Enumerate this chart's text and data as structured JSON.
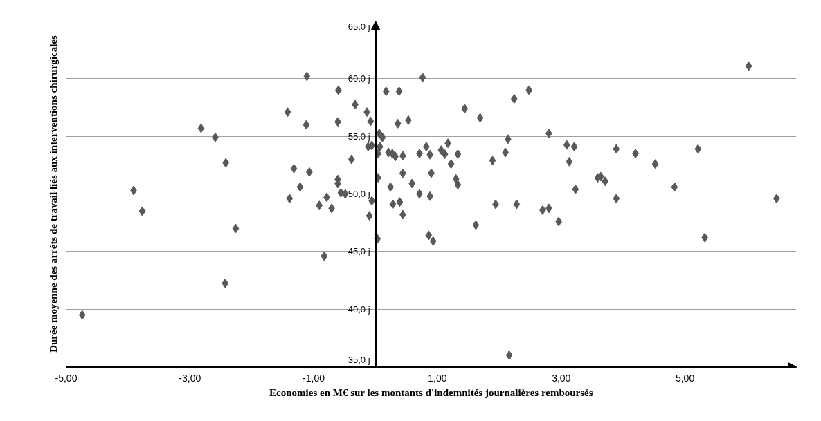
{
  "chart_data": {
    "type": "scatter",
    "xlabel": "Economies en M€ sur les montants d'indemnités journalières remboursés",
    "ylabel": "Durée moyenne des arrêts de travail liés aux interventions chirurgicales",
    "xlim": [
      -5,
      6.8
    ],
    "ylim": [
      35,
      65
    ],
    "xticks": [
      {
        "value": -5,
        "label": "-5,00"
      },
      {
        "value": -3,
        "label": "-3,00"
      },
      {
        "value": -1,
        "label": "-1,00"
      },
      {
        "value": 1,
        "label": "1,00"
      },
      {
        "value": 3,
        "label": "3,00"
      },
      {
        "value": 5,
        "label": "5,00"
      }
    ],
    "yticks": [
      {
        "value": 35,
        "label": "35,0 j"
      },
      {
        "value": 40,
        "label": "40,0 j"
      },
      {
        "value": 45,
        "label": "45,0 j"
      },
      {
        "value": 50,
        "label": "50,0 j"
      },
      {
        "value": 55,
        "label": "55,0 j"
      },
      {
        "value": 60,
        "label": "60,0 j"
      },
      {
        "value": 65,
        "label": "65,0 j"
      }
    ],
    "grid": "y",
    "marker": "diamond",
    "series": [
      {
        "color": "#595959",
        "x": [
          -4.74,
          -3.91,
          -3.77,
          -2.82,
          -2.59,
          -2.42,
          -2.26,
          -2.43,
          -1.11,
          -1.42,
          -1.12,
          -0.6,
          -0.61,
          -0.33,
          -0.14,
          -0.08,
          0.17,
          0.38,
          0.36,
          0.53,
          0.76,
          0.06,
          0.11,
          -0.12,
          -0.06,
          0.07,
          0.04,
          0.21,
          0.27,
          0.32,
          0.44,
          -0.39,
          -1.32,
          -1.07,
          -1.22,
          -1.39,
          -0.61,
          -0.61,
          -0.56,
          -0.49,
          -0.79,
          -0.91,
          -0.71,
          -0.83,
          0.04,
          0.24,
          -0.06,
          -0.1,
          0.03,
          0.28,
          0.39,
          0.44,
          0.44,
          0.59,
          0.71,
          0.71,
          0.82,
          0.88,
          0.9,
          0.88,
          0.86,
          0.93,
          1.06,
          1.17,
          1.12,
          1.33,
          1.22,
          1.3,
          1.33,
          1.44,
          1.69,
          1.89,
          1.62,
          1.94,
          2.14,
          2.1,
          2.24,
          2.48,
          2.28,
          2.16,
          2.7,
          2.8,
          2.96,
          2.8,
          3.09,
          3.21,
          3.13,
          3.23,
          3.59,
          3.64,
          3.71,
          3.89,
          3.89,
          4.2,
          4.52,
          4.83,
          5.21,
          5.32,
          6.03,
          6.48
        ],
        "values": [
          39.5,
          50.3,
          48.5,
          55.7,
          54.9,
          52.7,
          47.0,
          42.25,
          60.2,
          57.1,
          56.0,
          59.0,
          56.25,
          57.75,
          57.1,
          56.3,
          58.9,
          58.9,
          56.1,
          56.4,
          60.1,
          55.25,
          54.9,
          54.1,
          54.2,
          54.1,
          53.5,
          53.6,
          53.5,
          53.25,
          53.3,
          53.0,
          52.2,
          51.9,
          50.6,
          49.6,
          51.25,
          50.9,
          50.1,
          50.0,
          49.7,
          49.0,
          48.75,
          44.6,
          51.4,
          50.6,
          49.4,
          48.1,
          46.1,
          49.1,
          49.3,
          48.2,
          51.8,
          50.9,
          50.0,
          53.5,
          54.1,
          53.4,
          51.8,
          49.8,
          46.4,
          45.9,
          53.8,
          54.4,
          53.45,
          53.45,
          52.6,
          51.3,
          50.8,
          57.4,
          56.6,
          52.9,
          47.3,
          49.1,
          54.75,
          53.6,
          58.25,
          59.0,
          49.1,
          36.0,
          48.6,
          48.75,
          47.6,
          55.25,
          54.25,
          54.1,
          52.8,
          50.4,
          51.4,
          51.5,
          51.1,
          53.9,
          49.6,
          53.5,
          52.6,
          50.6,
          53.9,
          46.2,
          61.1,
          49.6
        ]
      }
    ]
  }
}
